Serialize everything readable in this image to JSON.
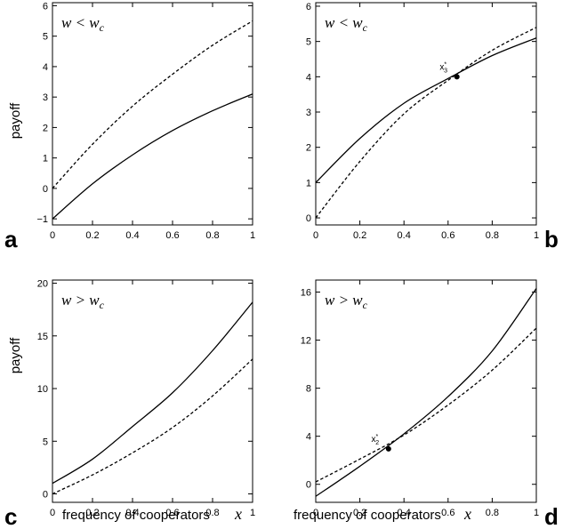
{
  "ylabel": "payoff",
  "xlabel": "frequency of cooperators",
  "xvar": "x",
  "chart_data": [
    {
      "panel": "a",
      "type": "line",
      "annotation": {
        "w": "w",
        "op": "<",
        "wc": "w",
        "sub": "c"
      },
      "xlim": [
        0,
        1
      ],
      "ylim": [
        -1.2,
        6.1
      ],
      "xticks": [
        "0",
        "0.2",
        "0.4",
        "0.6",
        "0.8",
        "1"
      ],
      "yticks": [
        {
          "v": -1,
          "label": "−1"
        },
        {
          "v": 0,
          "label": "0"
        },
        {
          "v": 1,
          "label": "1"
        },
        {
          "v": 2,
          "label": "2"
        },
        {
          "v": 3,
          "label": "3"
        },
        {
          "v": 4,
          "label": "4"
        },
        {
          "v": 5,
          "label": "5"
        },
        {
          "v": 6,
          "label": "6"
        }
      ],
      "series": [
        {
          "style": "solid",
          "x": [
            0,
            0.2,
            0.4,
            0.6,
            0.8,
            1
          ],
          "y": [
            -1,
            0.15,
            1.1,
            1.9,
            2.55,
            3.1
          ]
        },
        {
          "style": "dashed",
          "x": [
            0,
            0.2,
            0.4,
            0.6,
            0.8,
            1
          ],
          "y": [
            0,
            1.45,
            2.7,
            3.75,
            4.7,
            5.5
          ]
        }
      ]
    },
    {
      "panel": "b",
      "type": "line",
      "annotation": {
        "w": "w",
        "op": "<",
        "wc": "w",
        "sub": "c"
      },
      "xlim": [
        0,
        1
      ],
      "ylim": [
        -0.2,
        6.1
      ],
      "xticks": [
        "0",
        "0.2",
        "0.4",
        "0.6",
        "0.8",
        "1"
      ],
      "yticks": [
        {
          "v": 0,
          "label": "0"
        },
        {
          "v": 1,
          "label": "1"
        },
        {
          "v": 2,
          "label": "2"
        },
        {
          "v": 3,
          "label": "3"
        },
        {
          "v": 4,
          "label": "4"
        },
        {
          "v": 5,
          "label": "5"
        },
        {
          "v": 6,
          "label": "6"
        }
      ],
      "series": [
        {
          "style": "solid",
          "x": [
            0,
            0.2,
            0.4,
            0.6,
            0.8,
            1
          ],
          "y": [
            1,
            2.25,
            3.25,
            3.95,
            4.6,
            5.1
          ]
        },
        {
          "style": "dashed",
          "x": [
            0,
            0.2,
            0.4,
            0.6,
            0.8,
            1
          ],
          "y": [
            0,
            1.6,
            2.95,
            3.9,
            4.75,
            5.4
          ]
        }
      ],
      "point": {
        "x": 0.64,
        "y": 4.0,
        "label": "x",
        "sub": "3",
        "sup": "*"
      }
    },
    {
      "panel": "c",
      "type": "line",
      "annotation": {
        "w": "w",
        "op": ">",
        "wc": "w",
        "sub": "c"
      },
      "xlim": [
        0,
        1
      ],
      "ylim": [
        -0.8,
        20.3
      ],
      "xticks": [
        "0",
        "0.2",
        "0.4",
        "0.6",
        "0.8",
        "1"
      ],
      "yticks": [
        {
          "v": 0,
          "label": "0"
        },
        {
          "v": 5,
          "label": "5"
        },
        {
          "v": 10,
          "label": "10"
        },
        {
          "v": 15,
          "label": "15"
        },
        {
          "v": 20,
          "label": "20"
        }
      ],
      "series": [
        {
          "style": "solid",
          "x": [
            0,
            0.2,
            0.4,
            0.6,
            0.8,
            1
          ],
          "y": [
            1,
            3.3,
            6.4,
            9.6,
            13.6,
            18.2
          ]
        },
        {
          "style": "dashed",
          "x": [
            0,
            0.2,
            0.4,
            0.6,
            0.8,
            1
          ],
          "y": [
            0,
            1.8,
            3.9,
            6.3,
            9.3,
            12.8
          ]
        }
      ]
    },
    {
      "panel": "d",
      "type": "line",
      "annotation": {
        "w": "w",
        "op": ">",
        "wc": "w",
        "sub": "c"
      },
      "xlim": [
        0,
        1
      ],
      "ylim": [
        -1.5,
        17.0
      ],
      "xticks": [
        "0",
        "0.2",
        "0.4",
        "0.6",
        "0.8",
        "1"
      ],
      "yticks": [
        {
          "v": 0,
          "label": "0"
        },
        {
          "v": 4,
          "label": "4"
        },
        {
          "v": 8,
          "label": "8"
        },
        {
          "v": 12,
          "label": "12"
        },
        {
          "v": 16,
          "label": "16"
        }
      ],
      "series": [
        {
          "style": "solid",
          "x": [
            0,
            0.2,
            0.4,
            0.6,
            0.8,
            1
          ],
          "y": [
            -1,
            1.5,
            4.2,
            7.3,
            11.1,
            16.3
          ]
        },
        {
          "style": "dashed",
          "x": [
            0,
            0.2,
            0.4,
            0.6,
            0.8,
            1
          ],
          "y": [
            0.2,
            2.1,
            4.1,
            6.6,
            9.5,
            13.0
          ]
        }
      ],
      "point": {
        "x": 0.33,
        "y": 2.95,
        "label": "x",
        "sub": "2",
        "sup": "*"
      }
    }
  ]
}
